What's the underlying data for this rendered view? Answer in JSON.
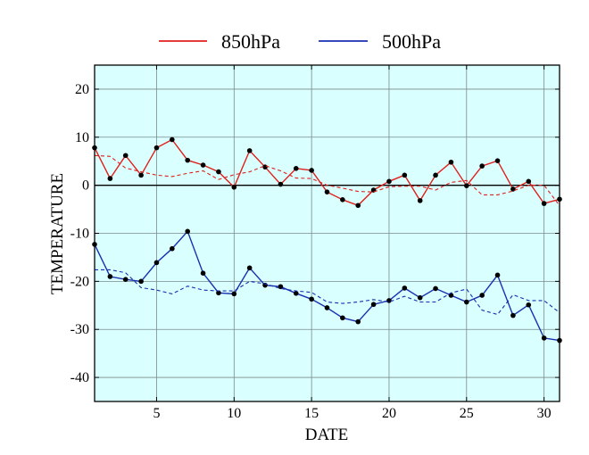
{
  "legend": {
    "items": [
      {
        "label": "850hPa",
        "color": "#e0201c"
      },
      {
        "label": "500hPa",
        "color": "#1a2fb0"
      }
    ]
  },
  "colors": {
    "plot_background": "#d9ffff",
    "grid": "#7a8a8a",
    "zero_line": "#000000",
    "point": "#000000"
  },
  "chart_data": {
    "type": "line",
    "title": "",
    "xlabel": "DATE",
    "ylabel": "TEMPERATURE",
    "xlim": [
      1,
      31
    ],
    "ylim": [
      -45,
      25
    ],
    "xticks": [
      5,
      10,
      15,
      20,
      25,
      30
    ],
    "yticks": [
      20,
      10,
      0,
      -10,
      -20,
      -30,
      -40
    ],
    "grid": true,
    "legend_position": "top",
    "x": [
      1,
      2,
      3,
      4,
      5,
      6,
      7,
      8,
      9,
      10,
      11,
      12,
      13,
      14,
      15,
      16,
      17,
      18,
      19,
      20,
      21,
      22,
      23,
      24,
      25,
      26,
      27,
      28,
      29,
      30,
      31
    ],
    "series": [
      {
        "name": "850hPa",
        "color": "#e0201c",
        "style": "solid-with-markers",
        "values": [
          7.8,
          1.4,
          6.2,
          2.1,
          7.8,
          9.5,
          5.2,
          4.2,
          2.8,
          -0.4,
          7.2,
          3.8,
          0.2,
          3.5,
          3.1,
          -1.4,
          -3.0,
          -4.2,
          -1.0,
          0.8,
          2.1,
          -3.2,
          2.1,
          4.8,
          -0.1,
          4.0,
          5.1,
          -0.8,
          0.8,
          -3.8,
          -2.9
        ]
      },
      {
        "name": "",
        "color": "#e0201c",
        "style": "dashed",
        "values": [
          6.2,
          6.0,
          3.6,
          2.8,
          2.1,
          1.8,
          2.5,
          3.0,
          1.2,
          2.2,
          2.8,
          4.1,
          3.0,
          1.5,
          1.4,
          0.0,
          -0.6,
          -1.3,
          -1.4,
          -0.3,
          -0.2,
          -0.2,
          -1.0,
          0.6,
          1.0,
          -2.0,
          -2.0,
          -1.2,
          0.0,
          0.0,
          -4.2
        ]
      },
      {
        "name": "500hPa",
        "color": "#1a2fb0",
        "style": "solid-with-markers",
        "values": [
          -12.3,
          -19.0,
          -19.6,
          -20.0,
          -16.1,
          -13.2,
          -9.6,
          -18.3,
          -22.4,
          -22.6,
          -17.2,
          -20.8,
          -21.1,
          -22.5,
          -23.7,
          -25.5,
          -27.6,
          -28.4,
          -24.8,
          -24.0,
          -21.4,
          -23.4,
          -21.5,
          -22.9,
          -24.3,
          -22.9,
          -18.7,
          -27.1,
          -24.9,
          -31.8,
          -32.3
        ]
      },
      {
        "name": "",
        "color": "#1a2fb0",
        "style": "dashed",
        "values": [
          -17.6,
          -17.6,
          -18.2,
          -21.3,
          -21.8,
          -22.6,
          -21.0,
          -21.8,
          -22.0,
          -22.0,
          -20.0,
          -20.5,
          -21.5,
          -22.0,
          -22.3,
          -24.3,
          -24.6,
          -24.3,
          -23.8,
          -24.3,
          -23.1,
          -24.3,
          -24.3,
          -22.4,
          -21.6,
          -26.0,
          -26.9,
          -22.8,
          -24.0,
          -24.0,
          -26.5
        ]
      }
    ]
  }
}
